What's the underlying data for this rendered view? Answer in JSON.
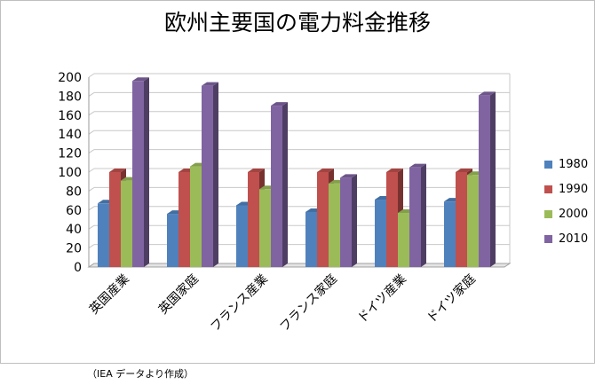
{
  "chart_data": {
    "type": "bar",
    "title": "欧州主要国の電力料金推移",
    "categories": [
      "英国産業",
      "英国家庭",
      "フランス産業",
      "フランス家庭",
      "ドイツ産業",
      "ドイツ家庭"
    ],
    "series": [
      {
        "name": "1980",
        "color": "#4F81BD",
        "values": [
          67,
          56,
          65,
          58,
          71,
          69
        ]
      },
      {
        "name": "1990",
        "color": "#C0504D",
        "values": [
          100,
          100,
          100,
          100,
          100,
          100
        ]
      },
      {
        "name": "2000",
        "color": "#9BBB59",
        "values": [
          91,
          106,
          82,
          88,
          57,
          97
        ]
      },
      {
        "name": "2010",
        "color": "#8064A2",
        "values": [
          196,
          191,
          170,
          94,
          105,
          181
        ]
      }
    ],
    "yticks": [
      0,
      20,
      40,
      60,
      80,
      100,
      120,
      140,
      160,
      180,
      200
    ],
    "ylim": [
      0,
      200
    ],
    "grid": true,
    "legend_position": "right",
    "xlabel": "",
    "ylabel": ""
  },
  "source_note": "（IEA データより作成）"
}
